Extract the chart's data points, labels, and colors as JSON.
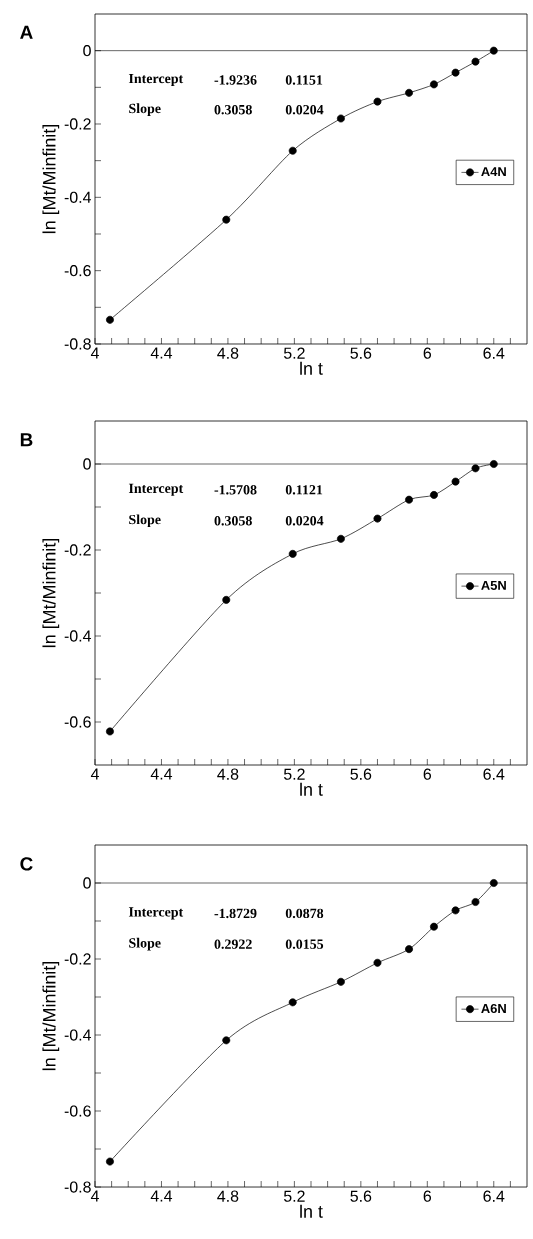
{
  "chart_data": [
    {
      "type": "line",
      "title": "A",
      "xlabel": "ln t",
      "ylabel": "ln [Mt/Minfinit]",
      "x": [
        4.09,
        4.79,
        5.19,
        5.48,
        5.7,
        5.89,
        6.04,
        6.17,
        6.29,
        6.4
      ],
      "series": [
        {
          "name": "A4N",
          "color": "#000000",
          "values": [
            -0.734,
            -0.461,
            -0.273,
            -0.185,
            -0.139,
            -0.115,
            -0.092,
            -0.06,
            -0.03,
            0
          ]
        }
      ],
      "xlim": [
        4,
        6.6
      ],
      "ylim": [
        -0.8,
        0.1
      ],
      "xticks": [
        4,
        {
          "value": 4.1,
          "label": null
        },
        {
          "value": 4.2,
          "label": null
        },
        {
          "value": 4.3,
          "label": null
        },
        4.4,
        {
          "value": 4.5,
          "label": null
        },
        {
          "value": 4.6,
          "label": null
        },
        {
          "value": 4.7,
          "label": null
        },
        4.8,
        {
          "value": 4.9,
          "label": null
        },
        {
          "value": 5.0,
          "label": null
        },
        {
          "value": 5.1,
          "label": null
        },
        5.2,
        {
          "value": 5.3,
          "label": null
        },
        {
          "value": 5.4,
          "label": null
        },
        {
          "value": 5.5,
          "label": null
        },
        5.6,
        {
          "value": 5.7,
          "label": null
        },
        {
          "value": 5.8,
          "label": null
        },
        {
          "value": 5.9,
          "label": null
        },
        6,
        {
          "value": 6.1,
          "label": null
        },
        {
          "value": 6.2,
          "label": null
        },
        {
          "value": 6.3,
          "label": null
        },
        6.4,
        {
          "value": 6.5,
          "label": null
        }
      ],
      "yticks": [
        -0.8,
        {
          "value": -0.7,
          "label": null
        },
        -0.6,
        {
          "value": -0.5,
          "label": null
        },
        -0.4,
        {
          "value": -0.3,
          "label": null
        },
        -0.2,
        {
          "value": -0.1,
          "label": null
        },
        0
      ],
      "ref_lines": [
        {
          "axis": "y",
          "value": 0
        }
      ],
      "legend": "right",
      "marker": "circle",
      "line_style": "solid",
      "annotations": [
        "Intercept",
        "-1.9236",
        "0.1151",
        "Slope",
        "0.3058",
        "0.0204"
      ]
    },
    {
      "type": "line",
      "title": "B",
      "xlabel": "ln t",
      "ylabel": "ln [Mt/Minfinit]",
      "x": [
        4.09,
        4.79,
        5.19,
        5.48,
        5.7,
        5.89,
        6.04,
        6.17,
        6.29,
        6.4
      ],
      "series": [
        {
          "name": "A5N",
          "color": "#000000",
          "values": [
            -0.622,
            -0.316,
            -0.209,
            -0.174,
            -0.127,
            -0.083,
            -0.072,
            -0.041,
            -0.01,
            0
          ]
        }
      ],
      "xlim": [
        4,
        6.6
      ],
      "ylim": [
        -0.7,
        0.1
      ],
      "xticks": [
        4,
        {
          "value": 4.1,
          "label": null
        },
        {
          "value": 4.2,
          "label": null
        },
        {
          "value": 4.3,
          "label": null
        },
        4.4,
        {
          "value": 4.5,
          "label": null
        },
        {
          "value": 4.6,
          "label": null
        },
        {
          "value": 4.7,
          "label": null
        },
        4.8,
        {
          "value": 4.9,
          "label": null
        },
        {
          "value": 5.0,
          "label": null
        },
        {
          "value": 5.1,
          "label": null
        },
        5.2,
        {
          "value": 5.3,
          "label": null
        },
        {
          "value": 5.4,
          "label": null
        },
        {
          "value": 5.5,
          "label": null
        },
        5.6,
        {
          "value": 5.7,
          "label": null
        },
        {
          "value": 5.8,
          "label": null
        },
        {
          "value": 5.9,
          "label": null
        },
        6,
        {
          "value": 6.1,
          "label": null
        },
        {
          "value": 6.2,
          "label": null
        },
        {
          "value": 6.3,
          "label": null
        },
        6.4,
        {
          "value": 6.5,
          "label": null
        }
      ],
      "yticks": [
        -0.6,
        {
          "value": -0.5,
          "label": null
        },
        -0.4,
        {
          "value": -0.3,
          "label": null
        },
        -0.2,
        {
          "value": -0.1,
          "label": null
        },
        0
      ],
      "ref_lines": [
        {
          "axis": "y",
          "value": 0
        }
      ],
      "legend": "right",
      "marker": "circle",
      "line_style": "solid",
      "annotations": [
        "Intercept",
        "-1.5708",
        "0.1121",
        "Slope",
        "0.3058",
        "0.0204"
      ]
    },
    {
      "type": "line",
      "title": "C",
      "xlabel": "ln t",
      "ylabel": "ln [Mt/Minfinit]",
      "x": [
        4.09,
        4.79,
        5.19,
        5.48,
        5.7,
        5.89,
        6.04,
        6.17,
        6.29,
        6.4
      ],
      "series": [
        {
          "name": "A6N",
          "color": "#000000",
          "values": [
            -0.733,
            -0.414,
            -0.314,
            -0.26,
            -0.21,
            -0.174,
            -0.115,
            -0.072,
            -0.05,
            0
          ]
        }
      ],
      "xlim": [
        4,
        6.6
      ],
      "ylim": [
        -0.8,
        0.1
      ],
      "xticks": [
        4,
        {
          "value": 4.1,
          "label": null
        },
        {
          "value": 4.2,
          "label": null
        },
        {
          "value": 4.3,
          "label": null
        },
        4.4,
        {
          "value": 4.5,
          "label": null
        },
        {
          "value": 4.6,
          "label": null
        },
        {
          "value": 4.7,
          "label": null
        },
        4.8,
        {
          "value": 4.9,
          "label": null
        },
        {
          "value": 5.0,
          "label": null
        },
        {
          "value": 5.1,
          "label": null
        },
        5.2,
        {
          "value": 5.3,
          "label": null
        },
        {
          "value": 5.4,
          "label": null
        },
        {
          "value": 5.5,
          "label": null
        },
        5.6,
        {
          "value": 5.7,
          "label": null
        },
        {
          "value": 5.8,
          "label": null
        },
        {
          "value": 5.9,
          "label": null
        },
        6,
        {
          "value": 6.1,
          "label": null
        },
        {
          "value": 6.2,
          "label": null
        },
        {
          "value": 6.3,
          "label": null
        },
        6.4,
        {
          "value": 6.5,
          "label": null
        }
      ],
      "yticks": [
        -0.8,
        {
          "value": -0.7,
          "label": null
        },
        -0.6,
        {
          "value": -0.5,
          "label": null
        },
        -0.4,
        {
          "value": -0.3,
          "label": null
        },
        -0.2,
        {
          "value": -0.1,
          "label": null
        },
        0
      ],
      "ref_lines": [
        {
          "axis": "y",
          "value": 0
        }
      ],
      "legend": "right",
      "marker": "circle",
      "line_style": "solid",
      "annotations": [
        "Intercept",
        "-1.8729",
        "0.0878",
        "Slope",
        "0.2922",
        "0.0155"
      ]
    }
  ]
}
